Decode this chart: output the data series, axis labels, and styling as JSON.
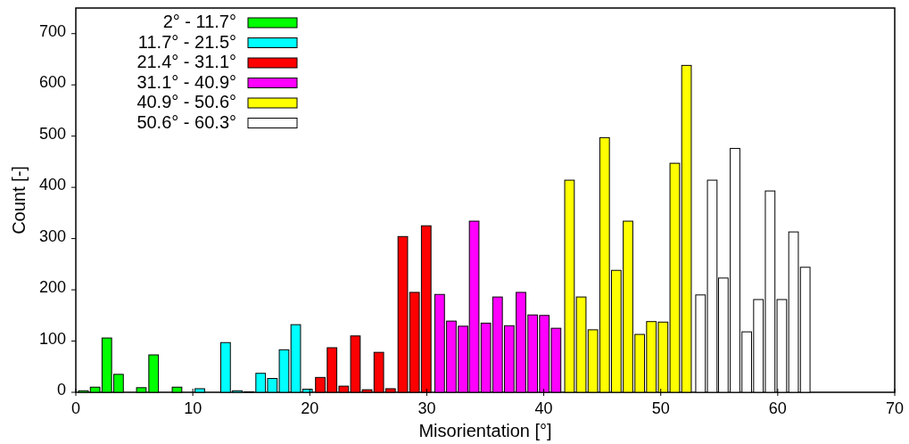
{
  "chart_data": {
    "type": "bar",
    "xlabel": "Misorientation [°]",
    "ylabel": "Count [-]",
    "xlim": [
      0,
      70
    ],
    "xticks": [
      0,
      10,
      20,
      30,
      40,
      50,
      60,
      70
    ],
    "ylim": [
      0,
      750
    ],
    "yticks": [
      0,
      100,
      200,
      300,
      400,
      500,
      600,
      700
    ],
    "legend": "top left",
    "grid": false,
    "series": [
      {
        "name": "2° - 11.7°",
        "color": "#00ff00",
        "x": [
          0.65,
          1.65,
          2.65,
          3.65,
          5.6,
          6.65,
          8.65
        ],
        "values": [
          3,
          10,
          106,
          35,
          9,
          73,
          10
        ]
      },
      {
        "name": "11.7° - 21.5°",
        "color": "#00ffff",
        "x": [
          10.6,
          12.8,
          13.8,
          14.8,
          15.8,
          16.8,
          17.8,
          18.8,
          19.8
        ],
        "values": [
          7,
          97,
          3,
          1,
          37,
          27,
          83,
          132,
          6
        ]
      },
      {
        "name": "21.4° - 31.1°",
        "color": "#ff0000",
        "x": [
          20.9,
          21.9,
          22.9,
          23.9,
          24.9,
          25.9,
          26.9,
          27.95,
          28.95,
          29.95
        ],
        "values": [
          29,
          87,
          12,
          110,
          5,
          78,
          7,
          304,
          195,
          325
        ]
      },
      {
        "name": "31.1° - 40.9°",
        "color": "#ff00ff",
        "x": [
          31.1,
          32.1,
          33.1,
          34.05,
          35.05,
          36.05,
          37.05,
          38.05,
          39.05,
          40.05,
          41.05
        ],
        "values": [
          191,
          139,
          129,
          334,
          135,
          186,
          130,
          195,
          151,
          150,
          125
        ]
      },
      {
        "name": "40.9° - 50.6°",
        "color": "#ffff00",
        "x": [
          42.2,
          43.2,
          44.2,
          45.2,
          46.2,
          47.2,
          48.2,
          49.2,
          50.2,
          51.2,
          52.2
        ],
        "values": [
          414,
          186,
          122,
          497,
          238,
          334,
          113,
          138,
          137,
          447,
          638
        ]
      },
      {
        "name": "50.6° - 60.3°",
        "color": "#ffffff",
        "x": [
          53.4,
          54.4,
          55.35,
          56.35,
          57.35,
          58.35,
          59.35,
          60.35,
          61.35,
          62.35
        ],
        "values": [
          190,
          414,
          223,
          476,
          118,
          181,
          393,
          181,
          313,
          244
        ]
      }
    ]
  }
}
